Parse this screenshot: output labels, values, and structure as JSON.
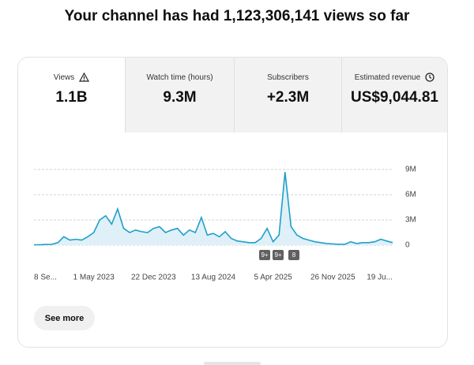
{
  "header": {
    "title": "Your channel has had 1,123,306,141 views so far"
  },
  "tabs": [
    {
      "label": "Views",
      "value": "1.1B"
    },
    {
      "label": "Watch time (hours)",
      "value": "9.3M"
    },
    {
      "label": "Subscribers",
      "value": "+2.3M"
    },
    {
      "label": "Estimated revenue",
      "value": "US$9,044.81"
    }
  ],
  "chart_data": {
    "type": "line",
    "color": "#1f9fc9",
    "grid": true,
    "categories": [
      "8 Se...",
      null,
      null,
      null,
      null,
      null,
      null,
      null,
      null,
      null,
      "1 May 2023",
      null,
      null,
      null,
      null,
      null,
      null,
      null,
      null,
      null,
      "22 Dec 2023",
      null,
      null,
      null,
      null,
      null,
      null,
      null,
      null,
      null,
      "13 Aug 2024",
      null,
      null,
      null,
      null,
      null,
      null,
      null,
      null,
      null,
      "5 Apr 2025",
      null,
      null,
      null,
      null,
      null,
      null,
      null,
      null,
      null,
      "26 Nov 2025",
      null,
      null,
      null,
      null,
      null,
      null,
      null,
      null,
      null,
      "19 Ju..."
    ],
    "values": [
      50000,
      60000,
      80000,
      100000,
      300000,
      1000000,
      600000,
      700000,
      600000,
      1000000,
      1500000,
      3000000,
      3500000,
      2500000,
      4300000,
      2000000,
      1500000,
      1800000,
      1600000,
      1500000,
      2000000,
      2200000,
      1500000,
      1800000,
      2000000,
      1200000,
      1800000,
      1500000,
      3300000,
      1200000,
      1400000,
      1000000,
      1600000,
      800000,
      500000,
      400000,
      300000,
      300000,
      800000,
      2000000,
      400000,
      1200000,
      8700000,
      2200000,
      1200000,
      800000,
      600000,
      400000,
      300000,
      200000,
      150000,
      100000,
      100000,
      400000,
      200000,
      300000,
      300000,
      400000,
      700000,
      500000,
      300000
    ],
    "ylim": [
      0,
      9000000
    ],
    "yticks": [
      {
        "value": 0,
        "label": "0"
      },
      {
        "value": 3000000,
        "label": "3M"
      },
      {
        "value": 6000000,
        "label": "6M"
      },
      {
        "value": 9000000,
        "label": "9M"
      }
    ],
    "badges": [
      "9+",
      "9+",
      "8"
    ]
  },
  "button": {
    "label": "See more"
  }
}
